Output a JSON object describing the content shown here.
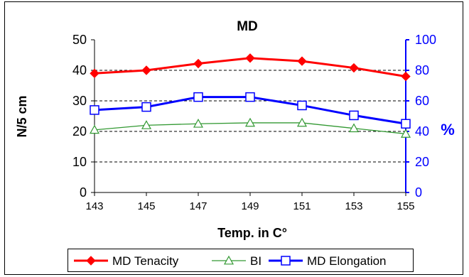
{
  "chart_data": {
    "type": "line",
    "title": "MD",
    "xlabel": "Temp. in C°",
    "ylabel_left": "N/5 cm",
    "ylabel_right": "%",
    "categories": [
      "143",
      "145",
      "147",
      "149",
      "151",
      "153",
      "155"
    ],
    "ylim_left": [
      0,
      50
    ],
    "yticks_left": [
      "0",
      "10",
      "20",
      "30",
      "40",
      "50"
    ],
    "ylim_right": [
      0,
      100
    ],
    "yticks_right": [
      "0",
      "20",
      "40",
      "60",
      "80",
      "100"
    ],
    "grid": "dashed horizontal",
    "legend_position": "bottom",
    "series": [
      {
        "name": "MD Tenacity",
        "axis": "left",
        "color": "#ff0000",
        "marker": "diamond",
        "values": [
          39,
          40,
          42.2,
          44,
          43,
          40.8,
          38
        ]
      },
      {
        "name": "BI",
        "axis": "left",
        "color": "#339933",
        "marker": "triangle",
        "values": [
          20.5,
          22,
          22.5,
          22.8,
          22.8,
          21,
          19.2
        ]
      },
      {
        "name": "MD Elongation",
        "axis": "right",
        "color": "#0000ff",
        "marker": "square",
        "values": [
          54,
          56,
          62.5,
          62.5,
          57,
          50.5,
          45
        ]
      }
    ]
  }
}
